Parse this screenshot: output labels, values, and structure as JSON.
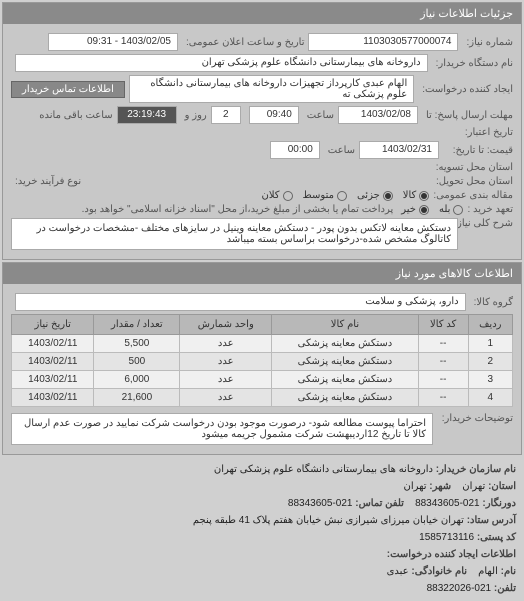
{
  "panel1": {
    "title": "جزئیات اطلاعات نیاز",
    "request_no_label": "شماره نیاز:",
    "request_no": "1103030577000074",
    "announce_label": "تاریخ و ساعت اعلان عمومی:",
    "announce_value": "1403/02/05 - 09:31",
    "buyer_label": "نام دستگاه خریدار:",
    "buyer_value": "داروخانه های بیمارستانی دانشگاه علوم پزشکی تهران",
    "reg_label": "ایجاد کننده درخواست:",
    "reg_value": "الهام عبدی کارپرداز تجهیزات داروخانه های بیمارستانی دانشگاه علوم پزشکی ته",
    "contact_btn": "اطلاعات تماس خریدار",
    "deadline_label": "مهلت ارسال پاسخ: تا",
    "deadline_date": "1403/02/08",
    "time_label": "ساعت",
    "deadline_time": "09:40",
    "remain_days": "2",
    "days_label": "روز و",
    "remain_time": "23:19:43",
    "remain_suffix": "ساعت باقی مانده",
    "credit_from_label": "تاریخ اعتبار:",
    "credit_to_label": "قیمت: تا تاریخ:",
    "credit_date": "1403/02/31",
    "credit_time": "00:00",
    "province_label": "استان محل تسویه:",
    "delivery_label": "استان محل تحویل:",
    "process_label": "نوع فرآیند خرید:",
    "pkg_label": "مقاله بندی عمومی:",
    "pkg_opts": {
      "kala": "کالا",
      "partial": "جزئی",
      "avg": "متوسط",
      "large": "کلان"
    },
    "pay_label": "تعهد خرید :",
    "pay_opts": {
      "yes": "بله",
      "no": "خیر"
    },
    "pay_note": "پرداخت تمام یا بخشی از مبلغ خرید،از محل \"اسناد خزانه اسلامی\" خواهد بود.",
    "desc_label": "شرح کلی نیاز:",
    "desc_value": "دستکش معاینه لاتکس بدون پودر - دستکش معاینه وینیل در سایزهای مختلف -مشخصات درخواست در کاتالوگ مشخص شده-درخواست براساس بسته میباشد"
  },
  "panel2": {
    "title": "اطلاعات کالاهای مورد نیاز",
    "group_label": "گروه کالا:",
    "group_value": "دارو، پزشکی و سلامت",
    "columns": [
      "ردیف",
      "کد کالا",
      "نام کالا",
      "واحد شمارش",
      "تعداد / مقدار",
      "تاریخ نیاز"
    ],
    "rows": [
      [
        "1",
        "--",
        "دستکش معاینه پزشکی",
        "عدد",
        "5,500",
        "1403/02/11"
      ],
      [
        "2",
        "--",
        "دستکش معاینه پزشکی",
        "عدد",
        "500",
        "1403/02/11"
      ],
      [
        "3",
        "--",
        "دستکش معاینه پزشکی",
        "عدد",
        "6,000",
        "1403/02/11"
      ],
      [
        "4",
        "--",
        "دستکش معاینه پزشکی",
        "عدد",
        "21,600",
        "1403/02/11"
      ]
    ],
    "note_label": "توضیحات خریدار:",
    "note_value": "احتراما پیوست مطالعه شود- درصورت موجود بودن درخواست شرکت نمایید در صورت عدم ارسال کالا تا تاریخ 12اردیبهشت شرکت مشمول جریمه میشود"
  },
  "footer": {
    "org_label": "نام سازمان خریدار:",
    "org_value": "داروخانه های بیمارستانی دانشگاه علوم پزشکی تهران",
    "province_label": "استان:",
    "province_value": "تهران",
    "city_label": "شهر:",
    "city_value": "تهران",
    "fax_label": "دورنگار:",
    "fax_value": "021-88343605",
    "phone_label": "تلفن تماس:",
    "phone_value": "021-88343605",
    "addr_label": "آدرس ستاد:",
    "addr_value": "تهران خیابان میرزای شیرازی نبش خیابان هفتم پلاک 41 طبقه پنجم",
    "post_label": "کد پستی:",
    "post_value": "1585713116",
    "creator_label": "اطلاعات ایجاد کننده درخواست:",
    "name_label": "نام:",
    "name_value": "الهام",
    "family_label": "نام خانوادگی:",
    "family_value": "عبدی",
    "tel_label": "تلفن:",
    "tel_value": "021-88322026"
  }
}
